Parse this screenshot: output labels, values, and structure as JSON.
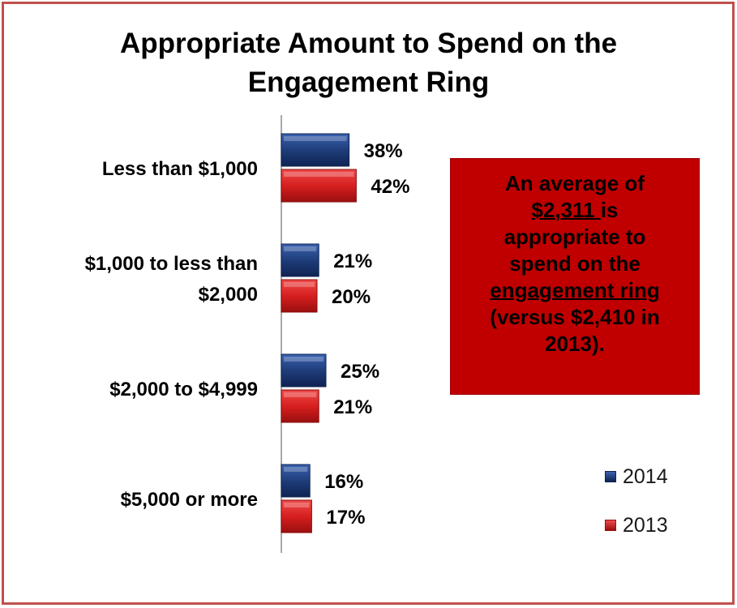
{
  "chart_data": {
    "type": "bar",
    "orientation": "horizontal",
    "title": "Appropriate Amount to Spend  on the\nEngagement Ring",
    "categories": [
      "Less than $1,000",
      "$1,000 to less than\n$2,000",
      "$2,000 to $4,999",
      "$5,000 or more"
    ],
    "series": [
      {
        "name": "2014",
        "values": [
          38,
          21,
          25,
          16
        ],
        "labels": [
          "38%",
          "21%",
          "25%",
          "16%"
        ],
        "color": "#1f3d7a"
      },
      {
        "name": "2013",
        "values": [
          42,
          20,
          21,
          17
        ],
        "labels": [
          "42%",
          "20%",
          "21%",
          "17%"
        ],
        "color": "#d61f1f"
      }
    ],
    "xlim": [
      0,
      100
    ],
    "grid": false,
    "legend": "bottom-right"
  },
  "callout": {
    "line1": "An average of",
    "amount": "$2,311 ",
    "after_amount": "is",
    "line3": "appropriate to",
    "line4": "spend on the",
    "emph": "engagement ring",
    "line6": "(versus $2,410 in",
    "line7": "2013).",
    "color": "#c00000"
  }
}
